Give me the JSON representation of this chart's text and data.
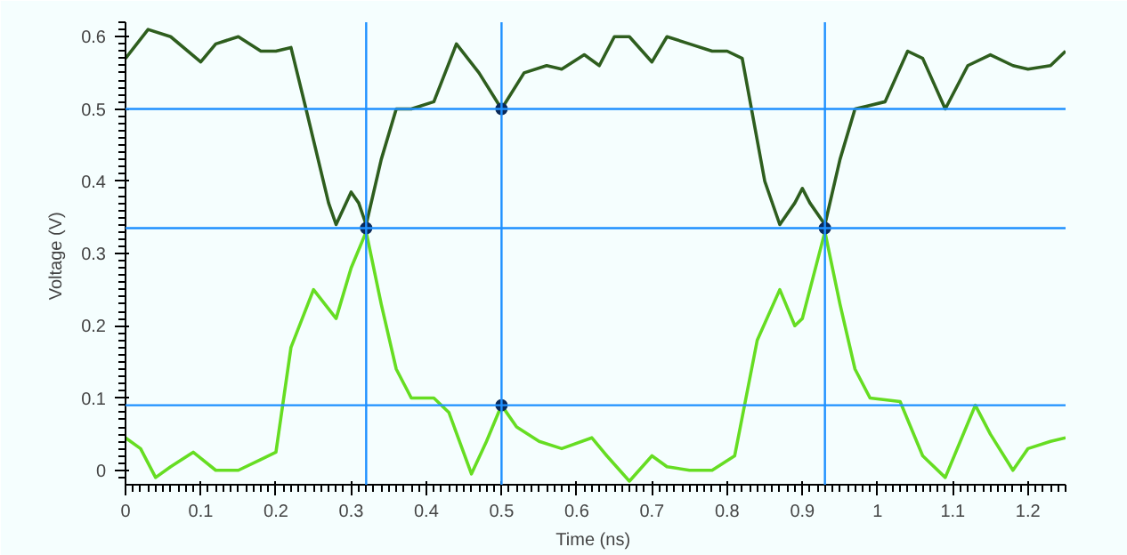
{
  "chart_data": {
    "type": "line",
    "xlabel": "Time  (ns)",
    "ylabel": "Voltage  (V)",
    "xlim": [
      0,
      1.25
    ],
    "ylim": [
      -0.02,
      0.62
    ],
    "xticks": [
      0,
      0.1,
      0.2,
      0.3,
      0.4,
      0.5,
      0.6,
      0.7,
      0.8,
      0.9,
      1,
      1.1,
      1.2
    ],
    "yticks": [
      0,
      0.1,
      0.2,
      0.3,
      0.4,
      0.5,
      0.6
    ],
    "grid": false,
    "marker": "none",
    "line_style": "solid",
    "series": [
      {
        "color": "#2e5e1e",
        "x": [
          0,
          0.03,
          0.06,
          0.1,
          0.12,
          0.15,
          0.18,
          0.2,
          0.22,
          0.24,
          0.27,
          0.28,
          0.3,
          0.31,
          0.32,
          0.34,
          0.36,
          0.38,
          0.41,
          0.44,
          0.47,
          0.5,
          0.53,
          0.56,
          0.58,
          0.61,
          0.63,
          0.65,
          0.67,
          0.7,
          0.72,
          0.75,
          0.78,
          0.8,
          0.82,
          0.85,
          0.87,
          0.89,
          0.9,
          0.91,
          0.93,
          0.95,
          0.97,
          0.99,
          1.01,
          1.04,
          1.06,
          1.09,
          1.12,
          1.15,
          1.18,
          1.2,
          1.23,
          1.25
        ],
        "values": [
          0.57,
          0.61,
          0.6,
          0.565,
          0.59,
          0.6,
          0.58,
          0.58,
          0.585,
          0.5,
          0.37,
          0.34,
          0.385,
          0.37,
          0.34,
          0.43,
          0.5,
          0.5,
          0.51,
          0.59,
          0.55,
          0.5,
          0.55,
          0.56,
          0.555,
          0.575,
          0.56,
          0.6,
          0.6,
          0.565,
          0.6,
          0.59,
          0.58,
          0.58,
          0.57,
          0.4,
          0.34,
          0.37,
          0.39,
          0.37,
          0.34,
          0.43,
          0.5,
          0.505,
          0.51,
          0.58,
          0.57,
          0.5,
          0.56,
          0.575,
          0.56,
          0.555,
          0.56,
          0.58
        ]
      },
      {
        "color": "#66dd22",
        "x": [
          0,
          0.02,
          0.04,
          0.06,
          0.09,
          0.12,
          0.15,
          0.18,
          0.2,
          0.22,
          0.25,
          0.28,
          0.3,
          0.32,
          0.34,
          0.36,
          0.38,
          0.41,
          0.43,
          0.46,
          0.48,
          0.5,
          0.52,
          0.55,
          0.58,
          0.62,
          0.64,
          0.67,
          0.7,
          0.72,
          0.75,
          0.78,
          0.81,
          0.84,
          0.87,
          0.89,
          0.9,
          0.93,
          0.95,
          0.97,
          0.99,
          1.03,
          1.06,
          1.09,
          1.11,
          1.13,
          1.15,
          1.18,
          1.2,
          1.23,
          1.25
        ],
        "values": [
          0.045,
          0.03,
          -0.01,
          0.005,
          0.025,
          0.0,
          0.0,
          0.015,
          0.025,
          0.17,
          0.25,
          0.21,
          0.28,
          0.33,
          0.23,
          0.14,
          0.1,
          0.1,
          0.08,
          -0.005,
          0.04,
          0.09,
          0.06,
          0.04,
          0.03,
          0.045,
          0.02,
          -0.015,
          0.02,
          0.005,
          0.0,
          0.0,
          0.02,
          0.18,
          0.25,
          0.2,
          0.21,
          0.33,
          0.23,
          0.14,
          0.1,
          0.095,
          0.02,
          -0.01,
          0.04,
          0.09,
          0.05,
          0.0,
          0.03,
          0.04,
          0.045
        ]
      },
      {
        "type": "scatter",
        "marker": "circle",
        "color": "#0a2a5a",
        "x": [
          0.32,
          0.5,
          0.5,
          0.93
        ],
        "values": [
          0.335,
          0.5,
          0.09,
          0.335
        ]
      }
    ],
    "ref_lines": [
      {
        "axis": "x",
        "value": 0.32,
        "color": "#1e90ff"
      },
      {
        "axis": "x",
        "value": 0.5,
        "color": "#1e90ff"
      },
      {
        "axis": "x",
        "value": 0.93,
        "color": "#1e90ff"
      },
      {
        "axis": "y",
        "value": 0.5,
        "color": "#1e90ff"
      },
      {
        "axis": "y",
        "value": 0.335,
        "color": "#1e90ff"
      },
      {
        "axis": "y",
        "value": 0.09,
        "color": "#1e90ff"
      }
    ]
  }
}
